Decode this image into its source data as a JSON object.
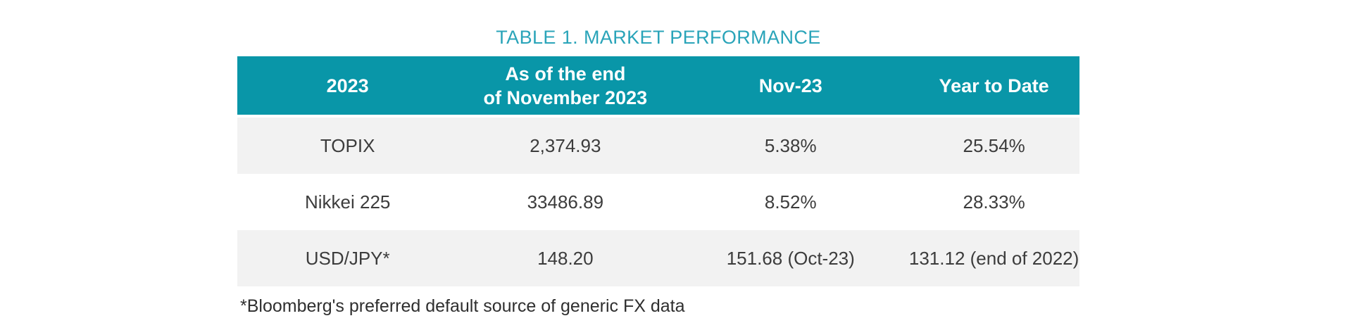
{
  "title": "TABLE 1. MARKET PERFORMANCE",
  "table": {
    "headers": [
      "2023",
      "As of the end\nof November 2023",
      "Nov-23",
      "Year to Date"
    ],
    "rows": [
      [
        "TOPIX",
        "2,374.93",
        "5.38%",
        "25.54%"
      ],
      [
        "Nikkei 225",
        "33486.89",
        "8.52%",
        "28.33%"
      ],
      [
        "USD/JPY*",
        "148.20",
        "151.68 (Oct-23)",
        "131.12 (end of 2022)"
      ]
    ]
  },
  "footnote": "*Bloomberg's preferred default source of generic FX data",
  "colors": {
    "header_bg": "#0996A8",
    "header_text": "#FFFFFF",
    "title_text": "#2AA4B9",
    "row_alt_bg": "#F2F2F2",
    "body_text": "#3C3C3C",
    "footnote_text": "#2F2F2F"
  }
}
